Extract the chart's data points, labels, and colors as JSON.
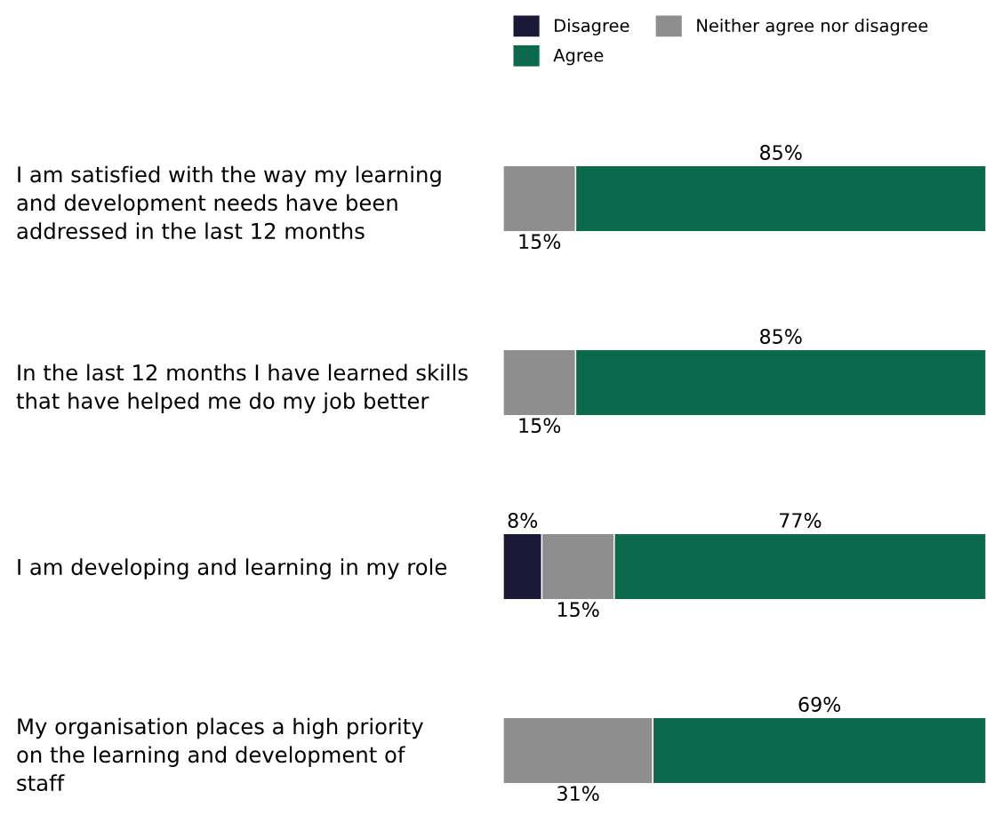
{
  "chart_data": {
    "type": "bar",
    "orientation": "horizontal",
    "stacked": true,
    "categories": [
      "I am satisfied with the way my learning\nand development needs have been\naddressed in the last 12 months",
      "In the last 12 months I have learned skills\nthat have helped me do my job better",
      "I am developing and learning in my role",
      "My organisation places a high priority\non the learning and development of\nstaff"
    ],
    "series": [
      {
        "name": "Disagree",
        "color": "#1c1838",
        "values": [
          0,
          0,
          8,
          0
        ],
        "value_labels": [
          null,
          null,
          "8%",
          null
        ]
      },
      {
        "name": "Neither agree nor disagree",
        "color": "#8e8e8e",
        "values": [
          15,
          15,
          15,
          31
        ],
        "value_labels": [
          "15%",
          "15%",
          "15%",
          "31%"
        ]
      },
      {
        "name": "Agree",
        "color": "#0b6a4c",
        "values": [
          85,
          85,
          77,
          69
        ],
        "value_labels": [
          "85%",
          "85%",
          "77%",
          "69%"
        ]
      }
    ],
    "xlim": [
      0,
      100
    ],
    "tick_labels": "y",
    "legend": "top",
    "grid": false
  }
}
